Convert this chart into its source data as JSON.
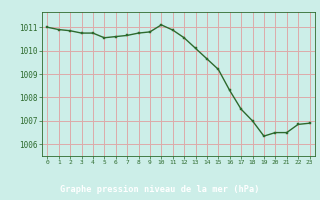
{
  "x": [
    0,
    1,
    2,
    3,
    4,
    5,
    6,
    7,
    8,
    9,
    10,
    11,
    12,
    13,
    14,
    15,
    16,
    17,
    18,
    19,
    20,
    21,
    22,
    23
  ],
  "y": [
    1011.0,
    1010.9,
    1010.85,
    1010.75,
    1010.75,
    1010.55,
    1010.6,
    1010.65,
    1010.75,
    1010.8,
    1011.1,
    1010.88,
    1010.55,
    1010.1,
    1009.65,
    1009.2,
    1008.3,
    1007.5,
    1007.0,
    1006.35,
    1006.5,
    1006.5,
    1006.85,
    1006.9
  ],
  "line_color": "#2d6a2d",
  "marker_color": "#2d6a2d",
  "bg_color": "#cceee8",
  "grid_color": "#ddaaaa",
  "label_bg": "#336633",
  "tick_color": "#2d6a2d",
  "xlabel": "Graphe pression niveau de la mer (hPa)",
  "xlim": [
    -0.5,
    23.5
  ],
  "ylim": [
    1005.5,
    1011.65
  ],
  "yticks": [
    1006,
    1007,
    1008,
    1009,
    1010,
    1011
  ],
  "xticks": [
    0,
    1,
    2,
    3,
    4,
    5,
    6,
    7,
    8,
    9,
    10,
    11,
    12,
    13,
    14,
    15,
    16,
    17,
    18,
    19,
    20,
    21,
    22,
    23
  ],
  "xtick_labels": [
    "0",
    "1",
    "2",
    "3",
    "4",
    "5",
    "6",
    "7",
    "8",
    "9",
    "10",
    "11",
    "12",
    "13",
    "14",
    "15",
    "16",
    "17",
    "18",
    "19",
    "20",
    "21",
    "22",
    "23"
  ]
}
